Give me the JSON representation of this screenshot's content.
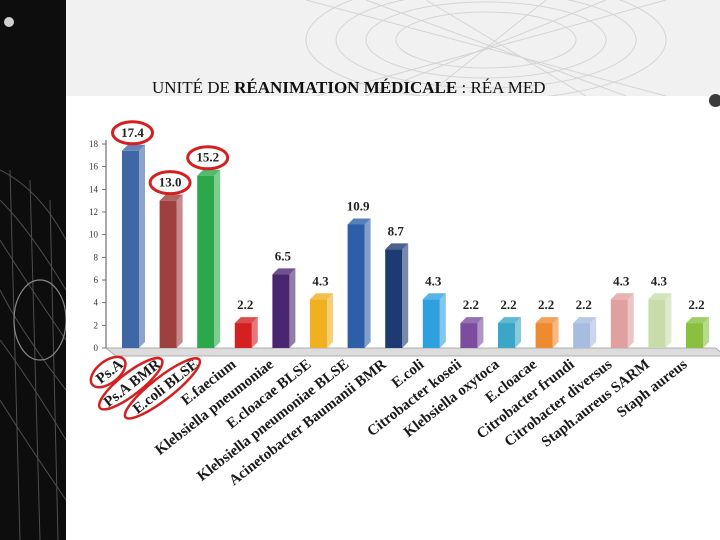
{
  "slide": {
    "title_normal_1": "UNITÉ DE ",
    "title_bold": "RÉANIMATION MÉDICALE",
    "title_normal_2": " : RÉA MED"
  },
  "colors": {
    "highlight_circle": "#d42020",
    "axis": "#555555",
    "wall": "#ececec"
  },
  "chart_data": {
    "type": "bar",
    "title": "",
    "xlabel": "",
    "ylabel": "",
    "ylim": [
      0,
      18
    ],
    "yticks": [
      "0",
      "2",
      "4",
      "6",
      "8",
      "10",
      "12",
      "14",
      "16",
      "18"
    ],
    "grid": false,
    "categories": [
      "Ps.A",
      "Ps.A  BMR",
      "E.coli BLSE",
      "E.faecium",
      "Klebsiella pneumoniae",
      "E.cloacae BLSE",
      "Klebsiella pneumoniae BLSE",
      "Acinetobacter Baumanii BMR",
      "E.coli",
      "Citrobacter koseii",
      "Klebsiella oxytoca",
      "E.cloacae",
      "Citrobacter frundi",
      "Citrobacter diversus",
      "Staph.aureus SARM",
      "Staph aureus"
    ],
    "values": [
      17.4,
      13.0,
      15.2,
      2.2,
      6.5,
      4.3,
      10.9,
      8.7,
      4.3,
      2.2,
      2.2,
      2.2,
      2.2,
      4.3,
      4.3,
      2.2
    ],
    "value_labels": [
      "17.4",
      "13.0",
      "15.2",
      "2.2",
      "6.5",
      "4.3",
      "10.9",
      "8.7",
      "4.3",
      "2.2",
      "2.2",
      "2.2",
      "2.2",
      "4.3",
      "4.3",
      "2.2"
    ],
    "bar_colors": [
      "#3f67a6",
      "#9e4040",
      "#2aa84a",
      "#d42020",
      "#4a2670",
      "#f0b020",
      "#2d5fa8",
      "#1e3a72",
      "#2ea0e0",
      "#7a4d9e",
      "#3aa6c8",
      "#f08a30",
      "#a8bce0",
      "#e0a0a0",
      "#c8dcaa",
      "#8ac040"
    ],
    "highlighted": [
      0,
      1,
      2
    ],
    "highlighted_labels": [
      0,
      1,
      2
    ]
  }
}
